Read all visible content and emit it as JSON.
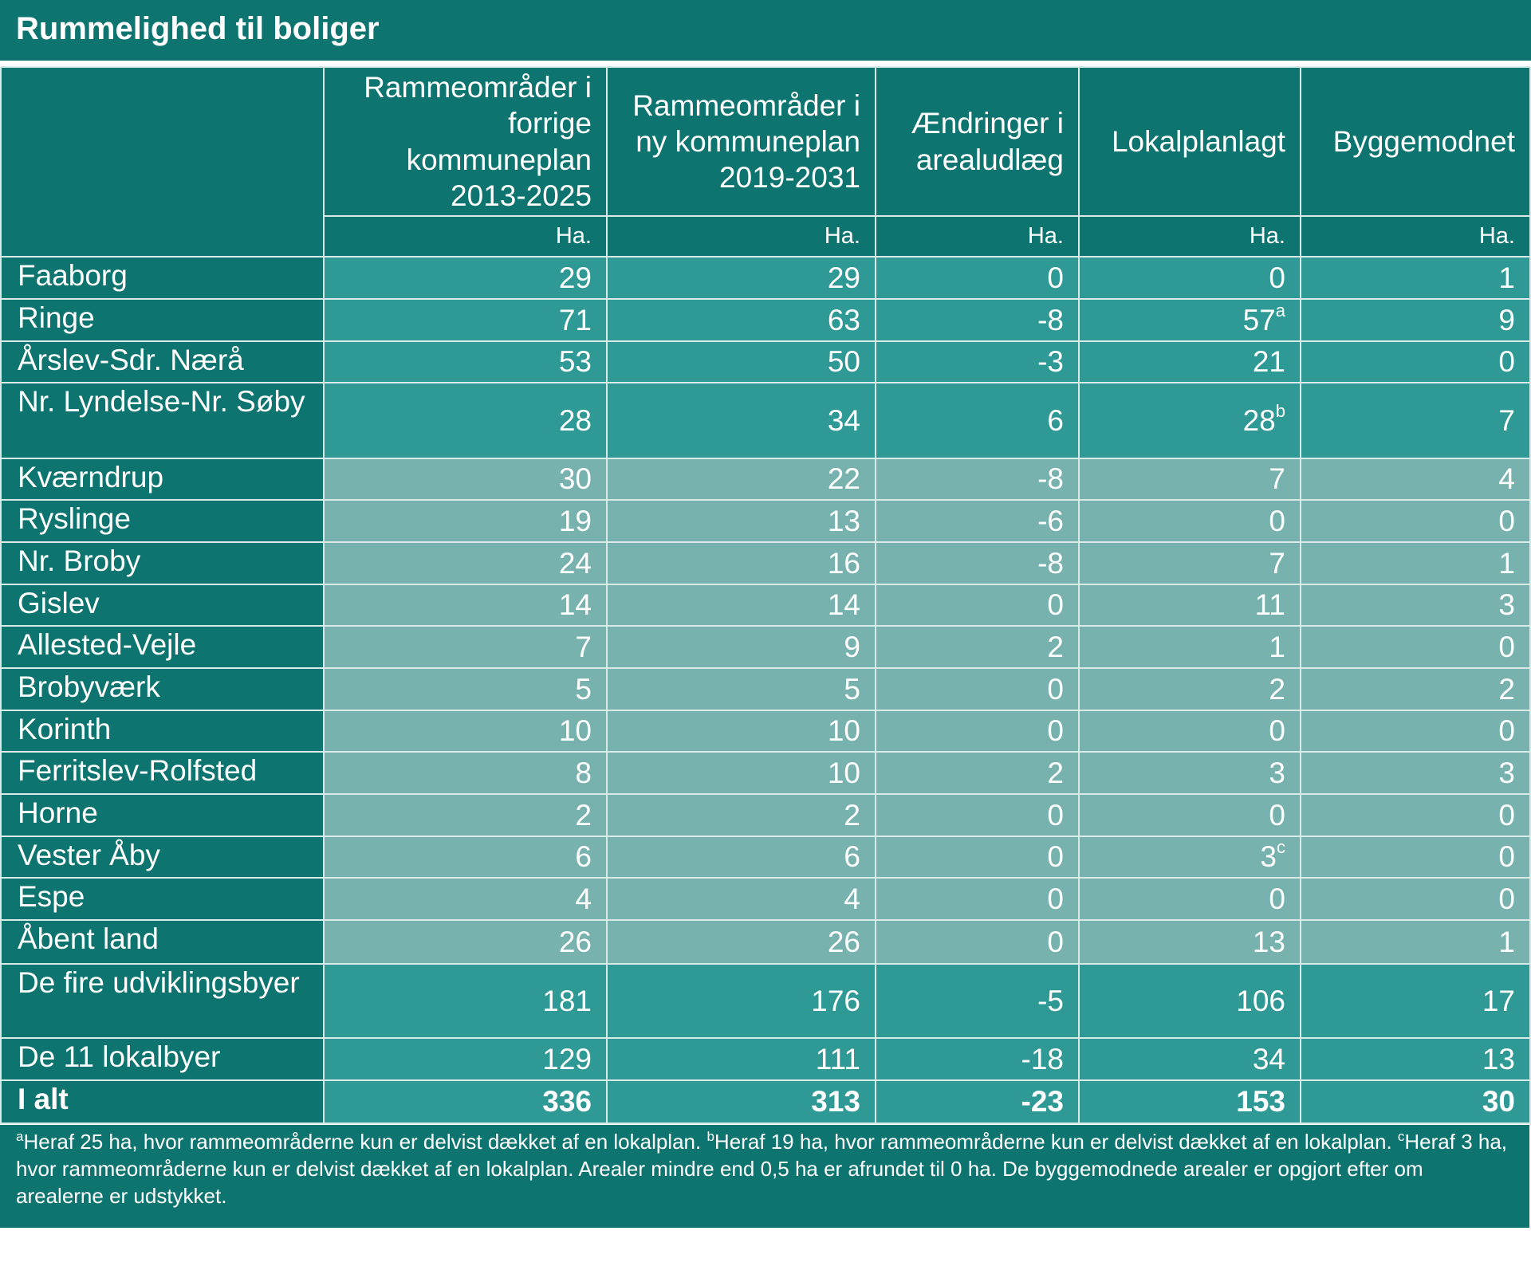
{
  "title": "Rummelighed til boliger",
  "columns": [
    {
      "header": "Rammeområder i forrige kommuneplan 2013-2025",
      "unit": "Ha."
    },
    {
      "header": "Rammeområder i ny kommuneplan 2019-2031",
      "unit": "Ha."
    },
    {
      "header": "Ændringer i arealudlæg",
      "unit": "Ha."
    },
    {
      "header": "Lokalplanlagt",
      "unit": "Ha."
    },
    {
      "header": "Byggemodnet",
      "unit": "Ha."
    }
  ],
  "rows": [
    {
      "name": "Faaborg",
      "values": [
        "29",
        "29",
        "0",
        "0",
        "1"
      ],
      "notes": [
        "",
        "",
        "",
        "",
        ""
      ]
    },
    {
      "name": "Ringe",
      "values": [
        "71",
        "63",
        "-8",
        "57",
        "9"
      ],
      "notes": [
        "",
        "",
        "",
        "a",
        ""
      ]
    },
    {
      "name": "Årslev-Sdr. Nærå",
      "values": [
        "53",
        "50",
        "-3",
        "21",
        "0"
      ],
      "notes": [
        "",
        "",
        "",
        "",
        ""
      ]
    },
    {
      "name": "Nr. Lyndelse-Nr. Søby",
      "values": [
        "28",
        "34",
        "6",
        "28",
        "7"
      ],
      "notes": [
        "",
        "",
        "",
        "b",
        ""
      ]
    },
    {
      "name": "Kværndrup",
      "values": [
        "30",
        "22",
        "-8",
        "7",
        "4"
      ],
      "notes": [
        "",
        "",
        "",
        "",
        ""
      ]
    },
    {
      "name": "Ryslinge",
      "values": [
        "19",
        "13",
        "-6",
        "0",
        "0"
      ],
      "notes": [
        "",
        "",
        "",
        "",
        ""
      ]
    },
    {
      "name": "Nr. Broby",
      "values": [
        "24",
        "16",
        "-8",
        "7",
        "1"
      ],
      "notes": [
        "",
        "",
        "",
        "",
        ""
      ]
    },
    {
      "name": "Gislev",
      "values": [
        "14",
        "14",
        "0",
        "11",
        "3"
      ],
      "notes": [
        "",
        "",
        "",
        "",
        ""
      ]
    },
    {
      "name": "Allested-Vejle",
      "values": [
        "7",
        "9",
        "2",
        "1",
        "0"
      ],
      "notes": [
        "",
        "",
        "",
        "",
        ""
      ]
    },
    {
      "name": "Brobyværk",
      "values": [
        "5",
        "5",
        "0",
        "2",
        "2"
      ],
      "notes": [
        "",
        "",
        "",
        "",
        ""
      ]
    },
    {
      "name": "Korinth",
      "values": [
        "10",
        "10",
        "0",
        "0",
        "0"
      ],
      "notes": [
        "",
        "",
        "",
        "",
        ""
      ]
    },
    {
      "name": "Ferritslev-Rolfsted",
      "values": [
        "8",
        "10",
        "2",
        "3",
        "3"
      ],
      "notes": [
        "",
        "",
        "",
        "",
        ""
      ]
    },
    {
      "name": "Horne",
      "values": [
        "2",
        "2",
        "0",
        "0",
        "0"
      ],
      "notes": [
        "",
        "",
        "",
        "",
        ""
      ]
    },
    {
      "name": "Vester Åby",
      "values": [
        "6",
        "6",
        "0",
        "3",
        "0"
      ],
      "notes": [
        "",
        "",
        "",
        "c",
        ""
      ]
    },
    {
      "name": "Espe",
      "values": [
        "4",
        "4",
        "0",
        "0",
        "0"
      ],
      "notes": [
        "",
        "",
        "",
        "",
        ""
      ]
    },
    {
      "name": "Åbent land",
      "values": [
        "26",
        "26",
        "0",
        "13",
        "1"
      ],
      "notes": [
        "",
        "",
        "",
        "",
        ""
      ]
    },
    {
      "name": "De fire udviklingsbyer",
      "values": [
        "181",
        "176",
        "-5",
        "106",
        "17"
      ],
      "notes": [
        "",
        "",
        "",
        "",
        ""
      ]
    },
    {
      "name": "De 11 lokalbyer",
      "values": [
        "129",
        "111",
        "-18",
        "34",
        "13"
      ],
      "notes": [
        "",
        "",
        "",
        "",
        ""
      ]
    },
    {
      "name": "I alt",
      "values": [
        "336",
        "313",
        "-23",
        "153",
        "30"
      ],
      "notes": [
        "",
        "",
        "",
        "",
        ""
      ]
    }
  ],
  "footnotes": [
    {
      "mark": "a",
      "text": "Heraf 25 ha, hvor rammeområderne kun er delvist dækket af en lokalplan. "
    },
    {
      "mark": "b",
      "text": "Heraf 19 ha, hvor rammeområderne kun er delvist dækket af en lokalplan. "
    },
    {
      "mark": "c",
      "text": "Heraf 3 ha, hvor rammeområderne kun er delvist dækket af en lokalplan. Arealer mindre end 0,5 ha er afrundet til 0 ha. De byggemodnede arealer er opgjort efter om arealerne er udstykket."
    }
  ],
  "colors": {
    "dark": "#0e7470",
    "mid": "#2f9995",
    "light": "#78b2ae"
  }
}
